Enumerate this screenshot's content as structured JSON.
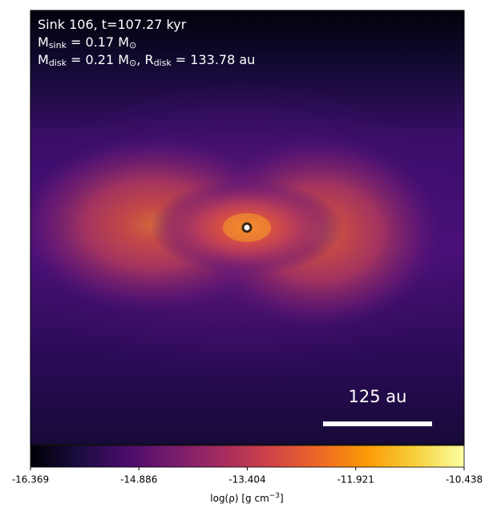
{
  "chart_data": {
    "type": "image",
    "annotations": [
      [
        "Sink 106, t=107.27 kyr"
      ],
      [
        "M",
        "sink",
        " = 0.17 M",
        "⊙"
      ],
      [
        "M",
        "disk",
        " = 0.21 M",
        "⊙",
        ", R",
        "disk",
        " = 133.78 au"
      ]
    ],
    "scale_bar_label": "125 au",
    "colorbar": {
      "label": [
        "log(ρ) [g cm",
        "−3",
        "]"
      ],
      "lim": [
        -16.369,
        -10.438
      ],
      "ticks": [
        -16.369,
        -14.886,
        -13.404,
        -11.921,
        -10.438
      ],
      "colormap": "inferno"
    }
  }
}
